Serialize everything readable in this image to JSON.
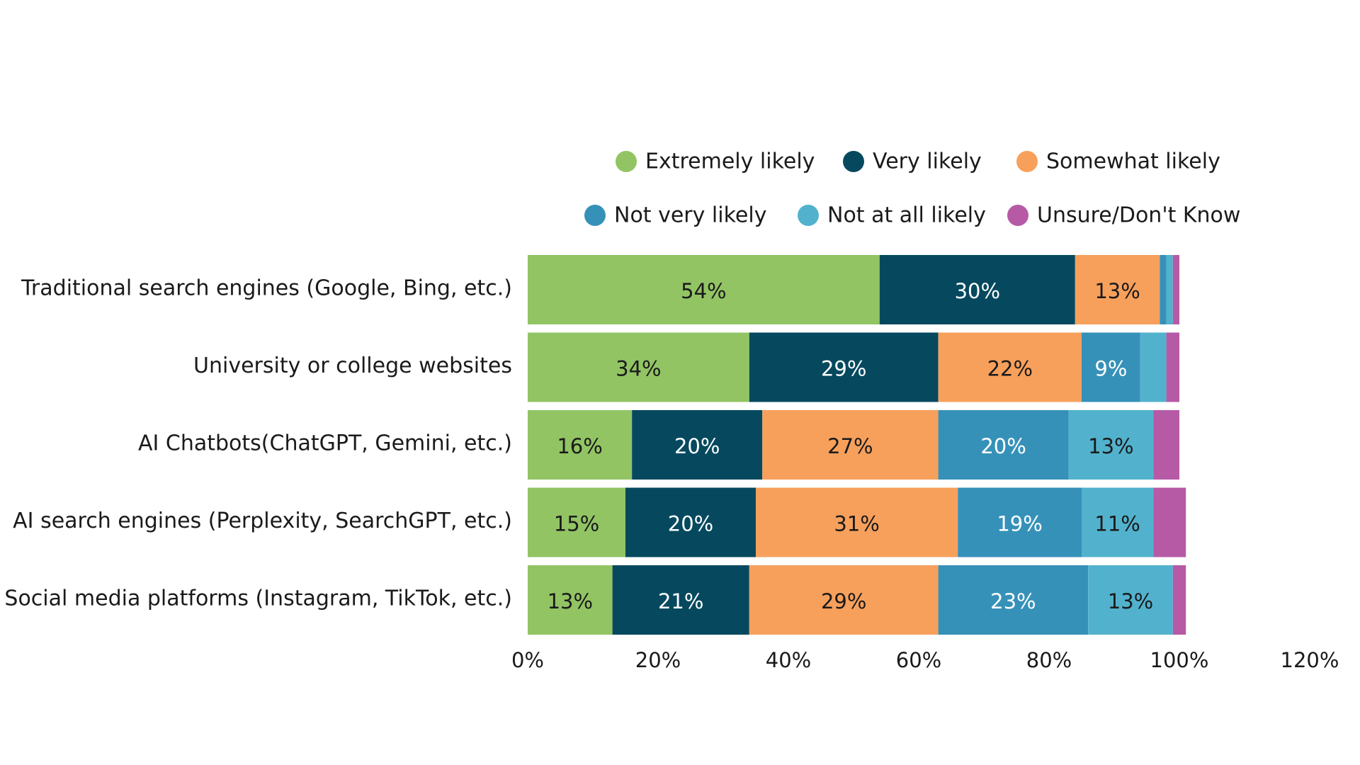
{
  "chart_data": {
    "type": "bar",
    "orientation": "horizontal",
    "stacked": true,
    "categories": [
      "Traditional search engines (Google, Bing, etc.)",
      "University or college websites",
      "AI Chatbots(ChatGPT, Gemini, etc.)",
      "AI search engines (Perplexity, SearchGPT, etc.)",
      "Social media platforms (Instagram, TikTok, etc.)"
    ],
    "series": [
      {
        "name": "Extremely likely",
        "color": "#92c464",
        "label_color": "#1a1a1a",
        "values": [
          54,
          34,
          16,
          15,
          13
        ],
        "labels": [
          "54%",
          "34%",
          "16%",
          "15%",
          "13%"
        ]
      },
      {
        "name": "Very likely",
        "color": "#06495f",
        "label_color": "#ffffff",
        "values": [
          30,
          29,
          20,
          20,
          21
        ],
        "labels": [
          "30%",
          "29%",
          "20%",
          "20%",
          "21%"
        ]
      },
      {
        "name": "Somewhat likely",
        "color": "#f7a05c",
        "label_color": "#1a1a1a",
        "values": [
          13,
          22,
          27,
          31,
          29
        ],
        "labels": [
          "13%",
          "22%",
          "27%",
          "31%",
          "29%"
        ]
      },
      {
        "name": "Not very likely",
        "color": "#3691b9",
        "label_color": "#ffffff",
        "values": [
          1,
          9,
          20,
          19,
          23
        ],
        "labels": [
          "",
          "9%",
          "20%",
          "19%",
          "23%"
        ]
      },
      {
        "name": "Not at all likely",
        "color": "#52b2cd",
        "label_color": "#1a1a1a",
        "values": [
          1,
          4,
          13,
          11,
          13
        ],
        "labels": [
          "",
          "",
          "13%",
          "11%",
          "13%"
        ]
      },
      {
        "name": "Unsure/Don't Know",
        "color": "#b65aa6",
        "label_color": "#ffffff",
        "values": [
          1,
          2,
          4,
          5,
          2
        ],
        "labels": [
          "",
          "",
          "",
          "",
          ""
        ]
      }
    ],
    "xlim": [
      0,
      120
    ],
    "x_ticks": [
      "0%",
      "20%",
      "40%",
      "60%",
      "80%",
      "100%",
      "120%"
    ],
    "grid": false,
    "legend_position": "top-right"
  }
}
